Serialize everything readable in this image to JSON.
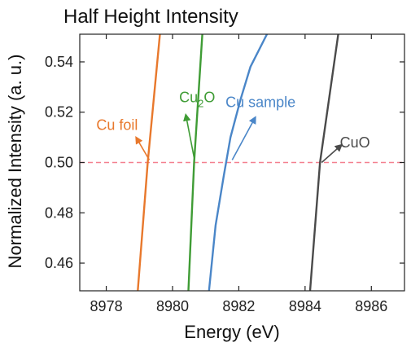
{
  "chart_data": {
    "type": "line",
    "title": "Half Height Intensity",
    "xlabel": "Energy (eV)",
    "ylabel": "Normalized Intensity (a. u.)",
    "xlim": [
      8977.2,
      8987.0
    ],
    "ylim": [
      0.449,
      0.551
    ],
    "xticks": [
      8978,
      8980,
      8982,
      8984,
      8986
    ],
    "yticks": [
      0.46,
      0.48,
      0.5,
      0.52,
      0.54
    ],
    "ytick_labels": [
      "0.46",
      "0.48",
      "0.50",
      "0.52",
      "0.54"
    ],
    "grid": false,
    "reference_line": {
      "y": 0.5,
      "color": "#f4808f",
      "style": "dashed"
    },
    "series": [
      {
        "name": "Cu foil",
        "color": "#e8782c",
        "points": [
          [
            8978.95,
            0.449
          ],
          [
            8979.25,
            0.5
          ],
          [
            8979.62,
            0.551
          ]
        ]
      },
      {
        "name": "Cu2O",
        "color": "#3f9c35",
        "points": [
          [
            8980.48,
            0.449
          ],
          [
            8980.65,
            0.5
          ],
          [
            8980.9,
            0.551
          ]
        ]
      },
      {
        "name": "Cu sample",
        "color": "#4a86c8",
        "points": [
          [
            8981.1,
            0.449
          ],
          [
            8981.3,
            0.475
          ],
          [
            8981.55,
            0.495
          ],
          [
            8981.75,
            0.51
          ],
          [
            8982.05,
            0.525
          ],
          [
            8982.35,
            0.538
          ],
          [
            8982.85,
            0.551
          ]
        ]
      },
      {
        "name": "CuO",
        "color": "#4a4a4a",
        "points": [
          [
            8984.15,
            0.449
          ],
          [
            8984.45,
            0.5
          ],
          [
            8985.0,
            0.551
          ]
        ]
      }
    ],
    "annotations": [
      {
        "series": "Cu foil",
        "text": "Cu foil",
        "text_at": [
          8977.7,
          0.513
        ],
        "arrow_from": [
          8979.3,
          0.501
        ],
        "arrow_to": [
          8978.9,
          0.51
        ]
      },
      {
        "series": "Cu2O",
        "text_main": "Cu",
        "text_sub": "2",
        "text_end": "O",
        "text_at": [
          8980.2,
          0.524
        ],
        "arrow_from": [
          8980.65,
          0.502
        ],
        "arrow_to": [
          8980.4,
          0.519
        ]
      },
      {
        "series": "Cu sample",
        "text": "Cu sample",
        "text_at": [
          8981.6,
          0.522
        ],
        "arrow_from": [
          8981.8,
          0.501
        ],
        "arrow_to": [
          8982.5,
          0.518
        ]
      },
      {
        "series": "CuO",
        "text": "CuO",
        "text_at": [
          8985.05,
          0.506
        ],
        "arrow_from": [
          8984.5,
          0.5
        ],
        "arrow_to": [
          8985.1,
          0.507
        ]
      }
    ]
  }
}
